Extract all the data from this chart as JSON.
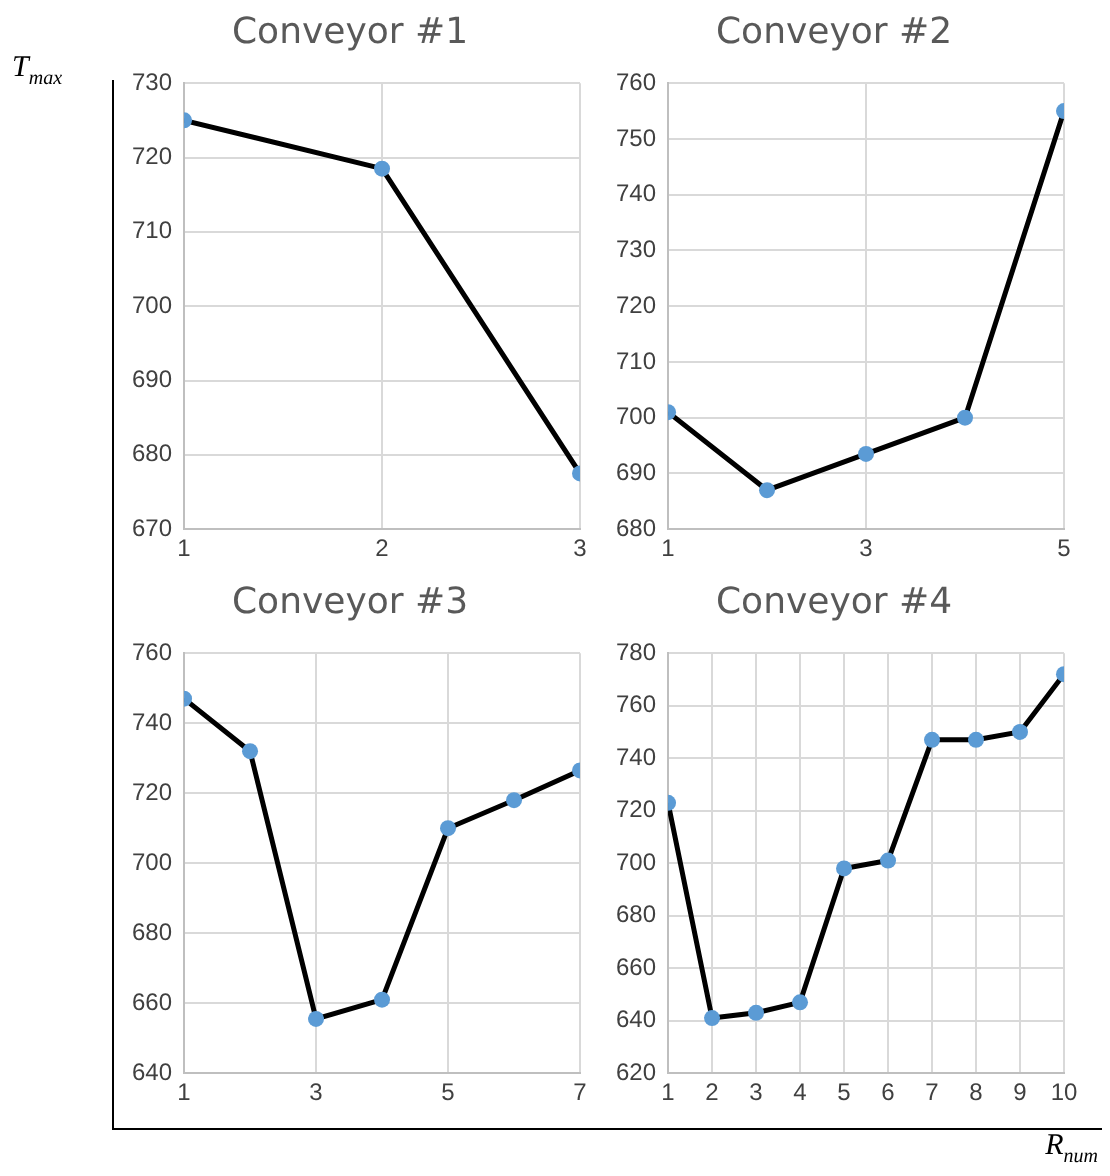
{
  "chart_data": [
    {
      "type": "line",
      "title": "Conveyor #1",
      "ylabel": "T$_{max}$",
      "x": [
        1,
        2,
        3
      ],
      "xlim": [
        1,
        3
      ],
      "xticks": [
        1,
        2,
        3
      ],
      "ylim": [
        670,
        730
      ],
      "yticks": [
        670,
        680,
        690,
        700,
        710,
        720,
        730
      ],
      "grid": true,
      "marker": "circle",
      "legend": false,
      "series": [
        {
          "color": "#000000",
          "values": [
            725,
            718.5,
            677.5
          ]
        }
      ]
    },
    {
      "type": "line",
      "title": "Conveyor #2",
      "x": [
        1,
        2,
        3,
        4,
        5
      ],
      "xlim": [
        1,
        5
      ],
      "xticks": [
        1,
        3,
        5
      ],
      "ylim": [
        680,
        760
      ],
      "yticks": [
        680,
        690,
        700,
        710,
        720,
        730,
        740,
        750,
        760
      ],
      "grid": true,
      "marker": "circle",
      "legend": false,
      "series": [
        {
          "color": "#000000",
          "values": [
            701,
            687,
            693.5,
            700,
            755
          ]
        }
      ]
    },
    {
      "type": "line",
      "title": "Conveyor #3",
      "x": [
        1,
        2,
        3,
        4,
        5,
        6,
        7
      ],
      "xlim": [
        1,
        7
      ],
      "xticks": [
        1,
        3,
        5,
        7
      ],
      "ylim": [
        640,
        760
      ],
      "yticks": [
        640,
        660,
        680,
        700,
        720,
        740,
        760
      ],
      "grid": true,
      "marker": "circle",
      "legend": false,
      "series": [
        {
          "color": "#000000",
          "values": [
            747,
            732,
            655.5,
            661,
            710,
            718,
            726.5
          ]
        }
      ]
    },
    {
      "type": "line",
      "title": "Conveyor #4",
      "xlabel": "R$_{num}$",
      "x": [
        1,
        2,
        3,
        4,
        5,
        6,
        7,
        8,
        9,
        10
      ],
      "xlim": [
        1,
        10
      ],
      "xticks": [
        1,
        2,
        3,
        4,
        5,
        6,
        7,
        8,
        9,
        10
      ],
      "ylim": [
        620,
        780
      ],
      "yticks": [
        620,
        640,
        660,
        680,
        700,
        720,
        740,
        760,
        780
      ],
      "grid": true,
      "marker": "circle",
      "legend": false,
      "series": [
        {
          "color": "#000000",
          "values": [
            723,
            641,
            643,
            647,
            698,
            701,
            747,
            747,
            750,
            772
          ]
        }
      ]
    }
  ]
}
